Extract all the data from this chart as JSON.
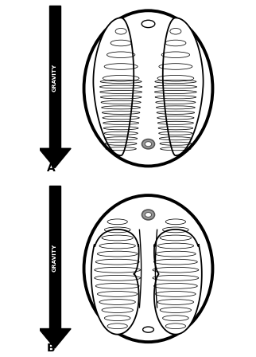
{
  "fig_width": 3.22,
  "fig_height": 4.48,
  "dpi": 100,
  "bg_color": "#ffffff",
  "panel_A_label": "A",
  "panel_B_label": "B",
  "gravity_text": "GRAVITY",
  "body_lw": 2.8,
  "lung_lw": 1.3,
  "ellipse_lw": 0.55,
  "aorta_fill": "#999999",
  "aorta_edge": "#555555",
  "white": "#ffffff",
  "black": "#000000"
}
